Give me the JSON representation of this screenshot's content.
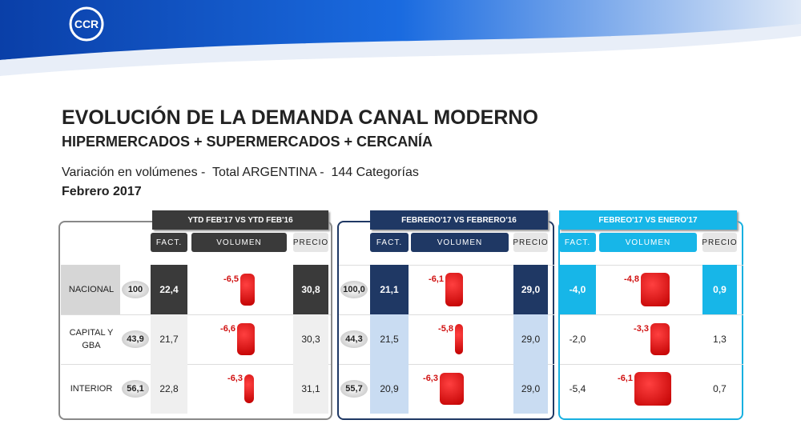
{
  "logo": "CCR",
  "title": "EVOLUCIÓN DE LA DEMANDA CANAL MODERNO",
  "subtitle": "HIPERMERCADOS + SUPERMERCADOS + CERCANÍA",
  "description": "Variación en volúmenes -  Total ARGENTINA -  144 Categorías",
  "period": "Febrero 2017",
  "row_labels": [
    "NACIONAL",
    "CAPITAL Y GBA",
    "INTERIOR"
  ],
  "panels": [
    {
      "header": "YTD FEB'17 VS YTD FEB'16",
      "columns": [
        "FACT.",
        "VOLUMEN",
        "PRECIO"
      ],
      "rows": [
        {
          "weight": "100",
          "fact": "22,4",
          "volume": "-6,5",
          "price": "30,8"
        },
        {
          "weight": "43,9",
          "fact": "21,7",
          "volume": "-6,6",
          "price": "30,3"
        },
        {
          "weight": "56,1",
          "fact": "22,8",
          "volume": "-6,3",
          "price": "31,1"
        }
      ]
    },
    {
      "header": "FEBRERO'17 VS FEBRERO'16",
      "columns": [
        "FACT.",
        "VOLUMEN",
        "PRECIO"
      ],
      "rows": [
        {
          "weight": "100,0",
          "fact": "21,1",
          "volume": "-6,1",
          "price": "29,0"
        },
        {
          "weight": "44,3",
          "fact": "21,5",
          "volume": "-5,8",
          "price": "29,0"
        },
        {
          "weight": "55,7",
          "fact": "20,9",
          "volume": "-6,3",
          "price": "29,0"
        }
      ]
    },
    {
      "header": "FEBREO'17 VS ENERO'17",
      "columns": [
        "FACT.",
        "VOLUMEN",
        "PRECIO"
      ],
      "rows": [
        {
          "fact": "-4,0",
          "volume": "-4,8",
          "price": "0,9"
        },
        {
          "fact": "-2,0",
          "volume": "-3,3",
          "price": "1,3"
        },
        {
          "fact": "-5,4",
          "volume": "-6,1",
          "price": "0,7"
        }
      ]
    }
  ]
}
